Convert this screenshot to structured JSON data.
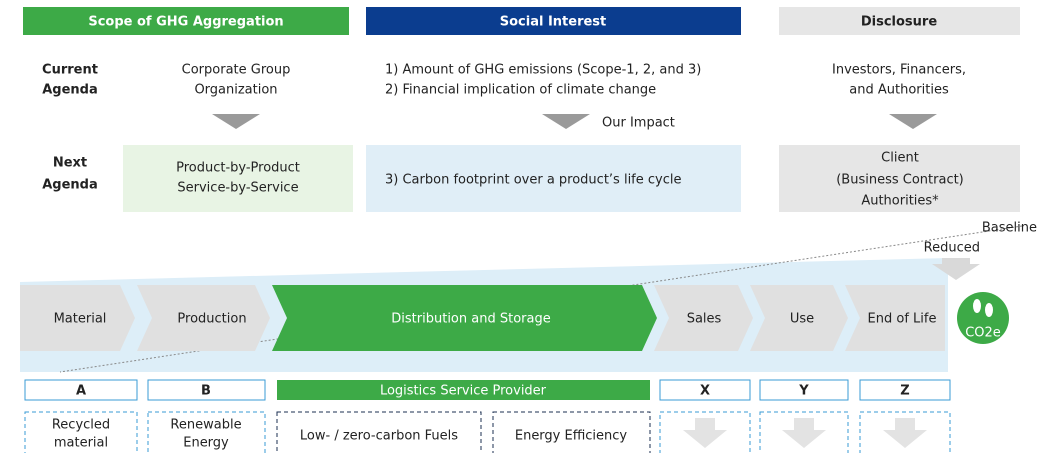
{
  "headers": [
    "Scope of GHG Aggregation",
    "Social Interest",
    "Disclosure"
  ],
  "current": {
    "label": [
      "Current",
      "Agenda"
    ],
    "scope": [
      "Corporate Group",
      "Organization"
    ],
    "social": [
      "1) Amount of GHG emissions (Scope-1, 2, and 3)",
      "2) Financial implication of climate change"
    ],
    "disclosure": [
      "Investors, Financers,",
      "and Authorities"
    ]
  },
  "impact_label": "Our Impact",
  "next": {
    "label": [
      "Next",
      "Agenda"
    ],
    "scope": [
      "Product-by-Product",
      "Service-by-Service"
    ],
    "social": "3) Carbon footprint over a product’s life cycle",
    "disclosure": [
      "Client",
      "(Business Contract)",
      "Authorities*"
    ]
  },
  "baseline": "Baseline",
  "reduced": "Reduced",
  "stages": [
    "Material",
    "Production",
    "Distribution and Storage",
    "Sales",
    "Use",
    "End of Life"
  ],
  "co2e": "CO2e",
  "providers": [
    "A",
    "B",
    "Logistics Service Provider",
    "X",
    "Y",
    "Z"
  ],
  "measures": [
    [
      "Recycled",
      "material"
    ],
    [
      "Renewable",
      "Energy"
    ],
    [
      "Low- / zero-carbon Fuels"
    ],
    [
      "Energy Efficiency"
    ]
  ]
}
